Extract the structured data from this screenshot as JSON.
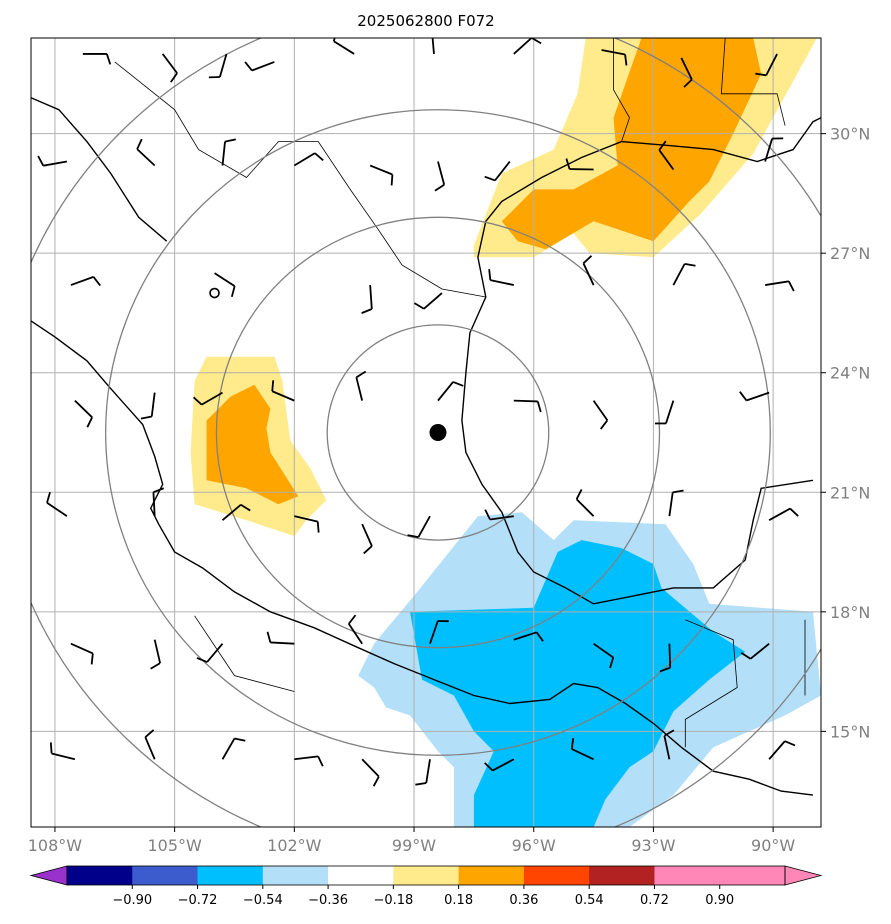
{
  "title": "2025062800 F072",
  "chart_data": {
    "type": "map",
    "projection": "lat-lon",
    "lon_range": [
      -108.6,
      -88.8
    ],
    "lat_range": [
      12.6,
      32.4
    ],
    "x_ticks": [
      {
        "lon": -108,
        "label": "108°W"
      },
      {
        "lon": -105,
        "label": "105°W"
      },
      {
        "lon": -102,
        "label": "102°W"
      },
      {
        "lon": -99,
        "label": "99°W"
      },
      {
        "lon": -96,
        "label": "96°W"
      },
      {
        "lon": -93,
        "label": "93°W"
      },
      {
        "lon": -90,
        "label": "90°W"
      }
    ],
    "y_ticks": [
      {
        "lat": 30,
        "label": "30°N"
      },
      {
        "lat": 27,
        "label": "27°N"
      },
      {
        "lat": 24,
        "label": "24°N"
      },
      {
        "lat": 21,
        "label": "21°N"
      },
      {
        "lat": 18,
        "label": "18°N"
      },
      {
        "lat": 15,
        "label": "15°N"
      }
    ],
    "grid": true,
    "center_marker": {
      "lon": -98.4,
      "lat": 22.5
    },
    "range_rings_deg": [
      2.7,
      5.4,
      8.1,
      10.8
    ],
    "shaded_regions": [
      {
        "level": 0.18,
        "color": "#ffeb8c",
        "polygon": [
          [
            -97.5,
            27.2
          ],
          [
            -96.8,
            29.0
          ],
          [
            -95.5,
            29.6
          ],
          [
            -94.9,
            31.0
          ],
          [
            -94.7,
            32.4
          ],
          [
            -88.9,
            32.4
          ],
          [
            -90.5,
            29.5
          ],
          [
            -91.8,
            28.0
          ],
          [
            -93.0,
            26.9
          ],
          [
            -94.6,
            27.0
          ],
          [
            -95.0,
            27.5
          ],
          [
            -96.0,
            26.9
          ],
          [
            -97.5,
            26.9
          ]
        ]
      },
      {
        "level": 0.36,
        "color": "#ffa500",
        "polygon": [
          [
            -96.8,
            27.8
          ],
          [
            -96.0,
            28.6
          ],
          [
            -95.0,
            28.6
          ],
          [
            -93.9,
            29.2
          ],
          [
            -94.0,
            30.4
          ],
          [
            -93.3,
            32.4
          ],
          [
            -90.5,
            32.4
          ],
          [
            -90.3,
            31.5
          ],
          [
            -91.0,
            30.0
          ],
          [
            -91.6,
            28.8
          ],
          [
            -92.1,
            28.3
          ],
          [
            -93.0,
            27.3
          ],
          [
            -94.5,
            27.8
          ],
          [
            -95.7,
            27.1
          ],
          [
            -96.4,
            27.3
          ]
        ]
      },
      {
        "level": 0.18,
        "color": "#ffeb8c",
        "polygon": [
          [
            -104.2,
            24.4
          ],
          [
            -102.5,
            24.4
          ],
          [
            -102.3,
            23.8
          ],
          [
            -102.1,
            22.3
          ],
          [
            -101.6,
            21.6
          ],
          [
            -101.2,
            20.8
          ],
          [
            -101.7,
            20.3
          ],
          [
            -102.0,
            19.9
          ],
          [
            -103.2,
            20.3
          ],
          [
            -104.5,
            20.7
          ],
          [
            -104.6,
            22.0
          ],
          [
            -104.5,
            23.8
          ]
        ]
      },
      {
        "level": 0.36,
        "color": "#ffa500",
        "polygon": [
          [
            -103.6,
            23.4
          ],
          [
            -103.0,
            23.7
          ],
          [
            -102.6,
            23.1
          ],
          [
            -102.7,
            22.6
          ],
          [
            -102.6,
            22.0
          ],
          [
            -101.9,
            20.9
          ],
          [
            -102.4,
            20.7
          ],
          [
            -103.2,
            21.1
          ],
          [
            -104.2,
            21.3
          ],
          [
            -104.2,
            22.8
          ]
        ]
      },
      {
        "level": -0.18,
        "color": "#b3dff8",
        "polygon": [
          [
            -97.4,
            20.4
          ],
          [
            -96.3,
            20.5
          ],
          [
            -95.5,
            19.8
          ],
          [
            -95.0,
            20.3
          ],
          [
            -92.7,
            20.2
          ],
          [
            -92.0,
            19.2
          ],
          [
            -91.6,
            18.2
          ],
          [
            -89.0,
            18.0
          ],
          [
            -88.8,
            15.9
          ],
          [
            -89.7,
            15.4
          ],
          [
            -91.5,
            14.6
          ],
          [
            -92.5,
            13.4
          ],
          [
            -93.6,
            12.6
          ],
          [
            -98.0,
            12.6
          ],
          [
            -98.0,
            14.1
          ],
          [
            -98.4,
            14.5
          ],
          [
            -99.1,
            15.4
          ],
          [
            -99.7,
            15.6
          ],
          [
            -100.0,
            16.1
          ],
          [
            -100.4,
            16.4
          ],
          [
            -100.0,
            17.2
          ],
          [
            -99.0,
            18.4
          ]
        ]
      },
      {
        "level": -0.36,
        "color": "#00bfff",
        "polygon": [
          [
            -96.0,
            18.1
          ],
          [
            -95.4,
            19.5
          ],
          [
            -94.8,
            19.8
          ],
          [
            -93.8,
            19.6
          ],
          [
            -93.0,
            19.2
          ],
          [
            -92.8,
            18.6
          ],
          [
            -91.5,
            17.5
          ],
          [
            -90.7,
            17.0
          ],
          [
            -91.6,
            16.3
          ],
          [
            -92.5,
            15.5
          ],
          [
            -93.0,
            14.5
          ],
          [
            -93.6,
            14.1
          ],
          [
            -94.2,
            13.3
          ],
          [
            -94.5,
            12.6
          ],
          [
            -97.5,
            12.6
          ],
          [
            -97.5,
            13.4
          ],
          [
            -97.0,
            14.5
          ],
          [
            -97.5,
            15.0
          ],
          [
            -98.0,
            15.9
          ],
          [
            -98.8,
            16.3
          ],
          [
            -99.1,
            18.0
          ]
        ]
      }
    ],
    "wind_barbs": [
      [
        -107.3,
        32.0
      ],
      [
        -105.3,
        32.0
      ],
      [
        -103.7,
        32.0
      ],
      [
        -102.5,
        31.8
      ],
      [
        -100.5,
        32.0
      ],
      [
        -98.5,
        32.0
      ],
      [
        -96.5,
        32.0
      ],
      [
        -94.3,
        32.1
      ],
      [
        -92.3,
        31.9
      ],
      [
        -89.9,
        32.0
      ],
      [
        -107.7,
        29.3
      ],
      [
        -105.5,
        29.2
      ],
      [
        -103.8,
        29.2
      ],
      [
        -102.0,
        29.2
      ],
      [
        -100.1,
        29.2
      ],
      [
        -98.4,
        29.3
      ],
      [
        -96.6,
        29.3
      ],
      [
        -94.5,
        29.1
      ],
      [
        -92.5,
        29.1
      ],
      [
        -90.2,
        29.3
      ],
      [
        -107.6,
        26.2
      ],
      [
        -104.0,
        26.5
      ],
      [
        -100.1,
        26.2
      ],
      [
        -98.3,
        26.0
      ],
      [
        -96.5,
        26.2
      ],
      [
        -94.5,
        26.2
      ],
      [
        -92.5,
        26.2
      ],
      [
        -90.2,
        26.2
      ],
      [
        -107.5,
        23.3
      ],
      [
        -105.5,
        23.5
      ],
      [
        -103.8,
        23.5
      ],
      [
        -102.0,
        23.3
      ],
      [
        -100.3,
        23.3
      ],
      [
        -98.4,
        23.3
      ],
      [
        -96.5,
        23.3
      ],
      [
        -94.5,
        23.3
      ],
      [
        -92.5,
        23.3
      ],
      [
        -90.1,
        23.5
      ],
      [
        -107.7,
        20.4
      ],
      [
        -105.5,
        20.4
      ],
      [
        -103.8,
        20.3
      ],
      [
        -102.0,
        20.4
      ],
      [
        -100.3,
        20.2
      ],
      [
        -98.6,
        20.4
      ],
      [
        -96.5,
        20.4
      ],
      [
        -94.5,
        20.4
      ],
      [
        -92.6,
        20.4
      ],
      [
        -90.1,
        20.3
      ],
      [
        -107.6,
        17.2
      ],
      [
        -105.5,
        17.3
      ],
      [
        -103.8,
        17.2
      ],
      [
        -102.0,
        17.2
      ],
      [
        -100.3,
        17.2
      ],
      [
        -98.6,
        17.2
      ],
      [
        -96.5,
        17.3
      ],
      [
        -94.5,
        17.2
      ],
      [
        -92.6,
        17.2
      ],
      [
        -90.1,
        17.2
      ],
      [
        -107.5,
        14.3
      ],
      [
        -105.5,
        14.3
      ],
      [
        -103.8,
        14.3
      ],
      [
        -102.0,
        14.3
      ],
      [
        -100.3,
        14.3
      ],
      [
        -98.6,
        14.3
      ],
      [
        -96.5,
        14.3
      ],
      [
        -94.5,
        14.3
      ],
      [
        -92.6,
        14.3
      ],
      [
        -90.1,
        14.3
      ]
    ],
    "calm_marker": {
      "lon": -104.0,
      "lat": 26.0
    },
    "colorbar": {
      "ticks": [
        "−0.90",
        "−0.72",
        "−0.54",
        "−0.36",
        "−0.18",
        "0.18",
        "0.36",
        "0.54",
        "0.72",
        "0.90"
      ],
      "colors": [
        "#9932cc",
        "#00008b",
        "#3c5ccd",
        "#00bfff",
        "#b3dff8",
        "#ffffff",
        "#ffeb8c",
        "#ffa500",
        "#ff4500",
        "#b22222",
        "#ff87b8",
        "#ff87b8"
      ]
    }
  }
}
